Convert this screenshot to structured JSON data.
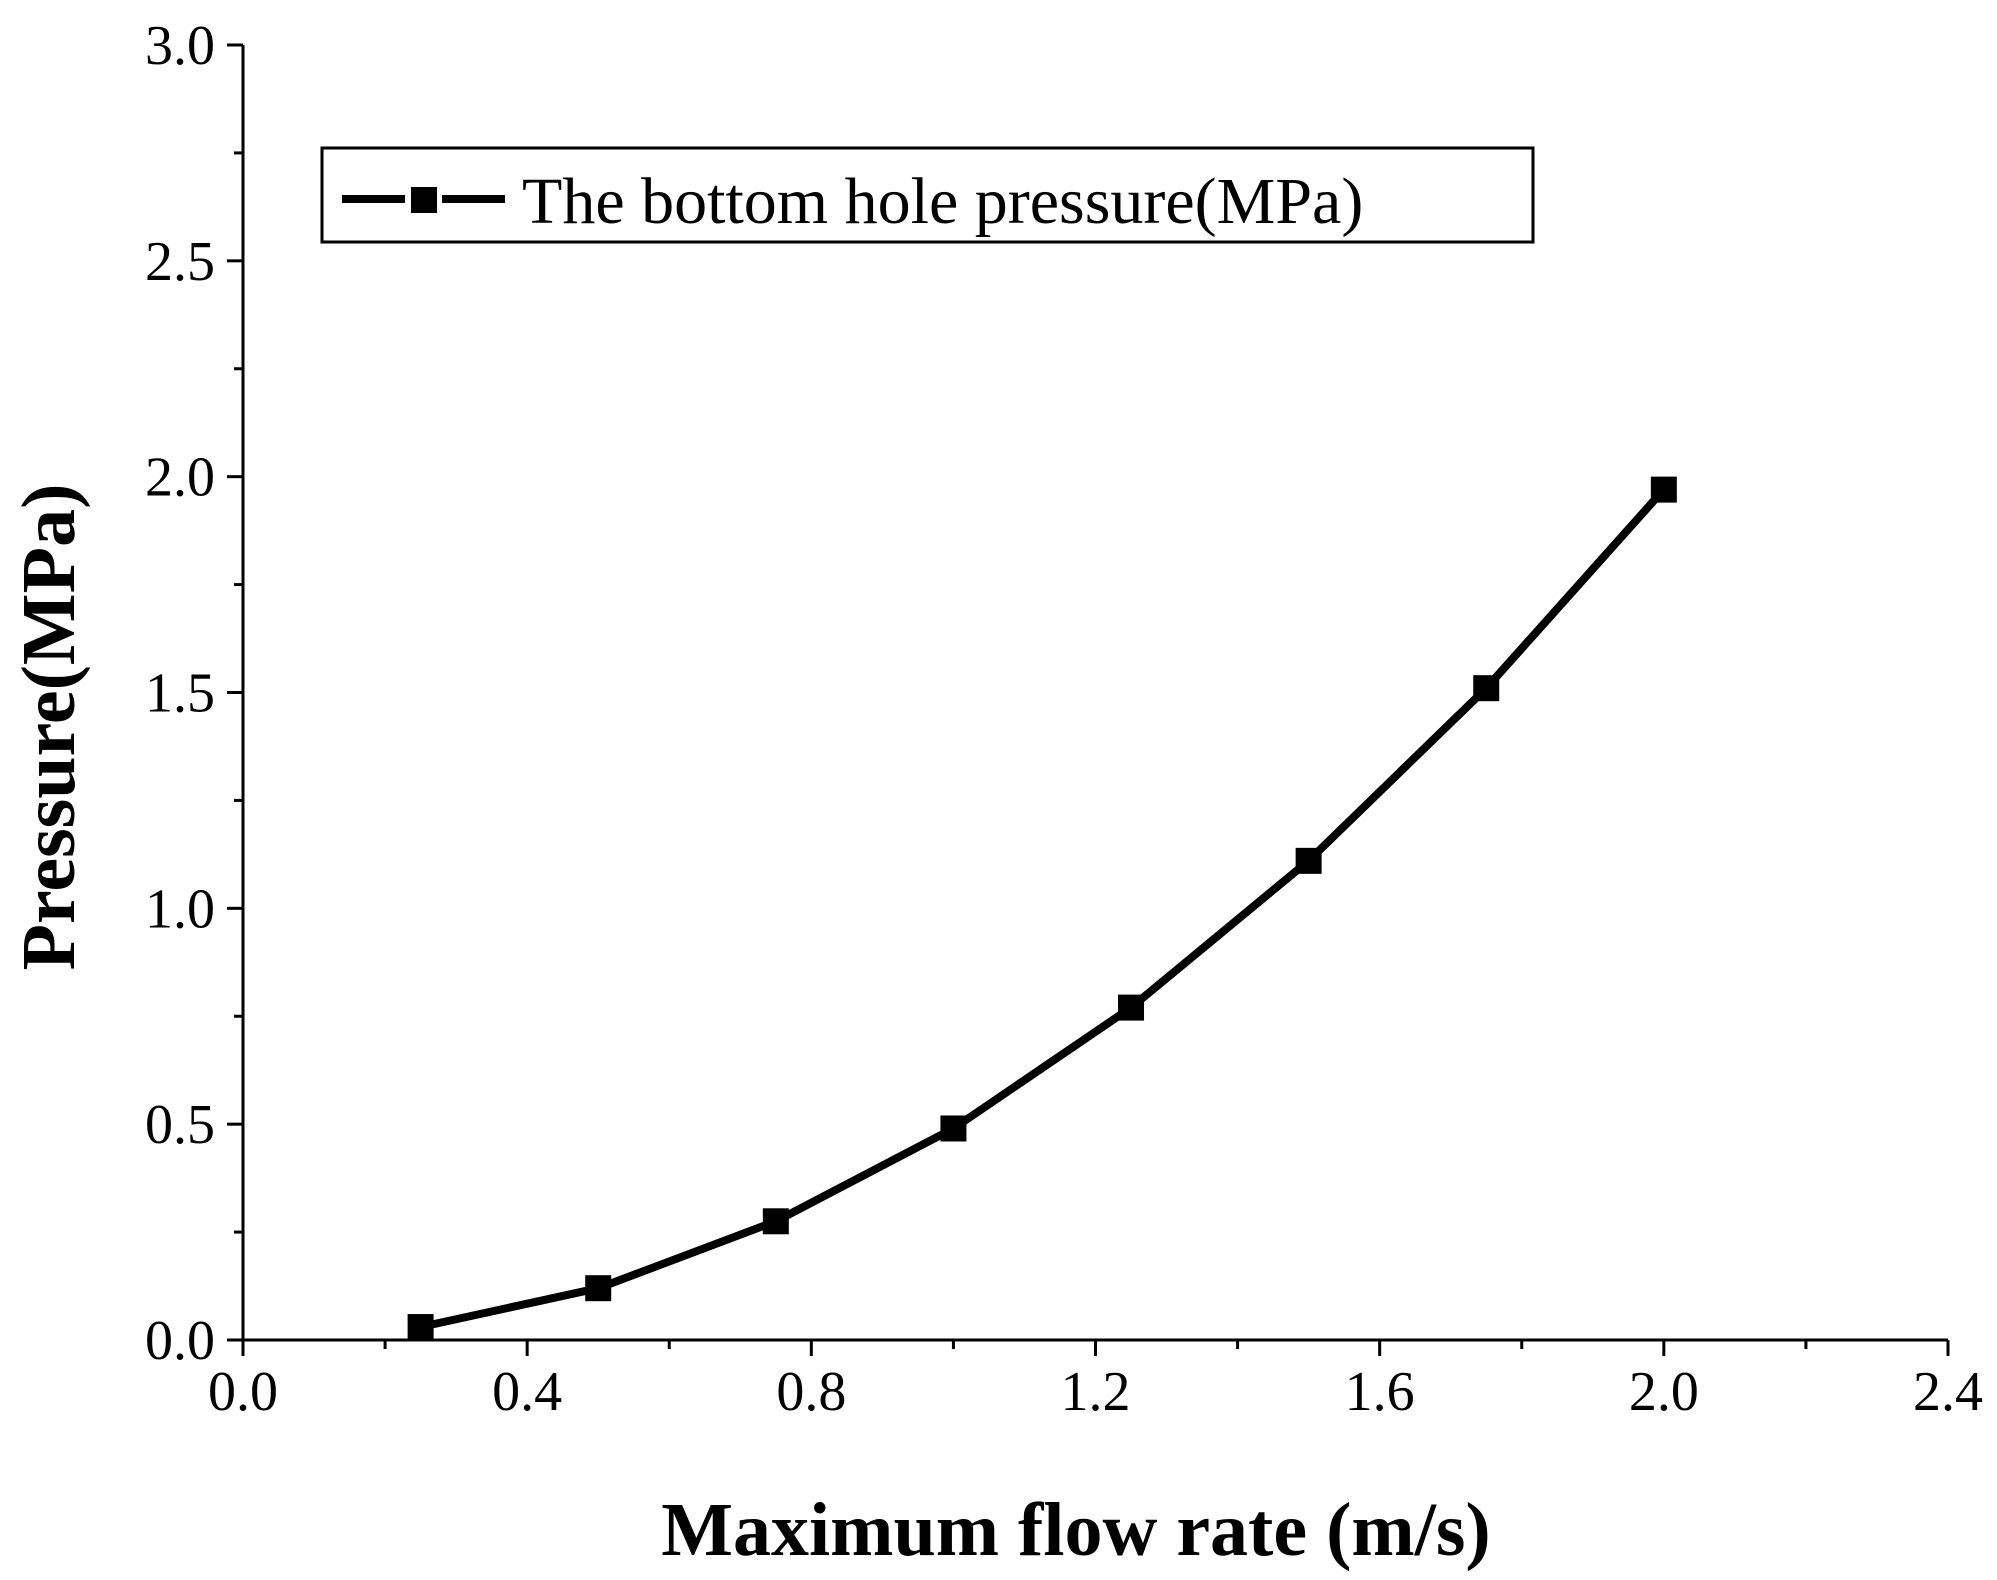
{
  "chart_data": {
    "type": "line",
    "title": "",
    "xlabel": "Maximum flow rate (m/s)",
    "ylabel": "Pressure(MPa)",
    "xlim": [
      0.0,
      2.4
    ],
    "ylim": [
      0.0,
      3.0
    ],
    "xticks": [
      0.0,
      0.4,
      0.8,
      1.2,
      1.6,
      2.0,
      2.4
    ],
    "xtick_labels": [
      "0.0",
      "0.4",
      "0.8",
      "1.2",
      "1.6",
      "2.0",
      "2.4"
    ],
    "yticks": [
      0.0,
      0.5,
      1.0,
      1.5,
      2.0,
      2.5,
      3.0
    ],
    "ytick_labels": [
      "0.0",
      "0.5",
      "1.0",
      "1.5",
      "2.0",
      "2.5",
      "3.0"
    ],
    "grid": false,
    "legend_position": "top-left",
    "series": [
      {
        "name": "The bottom hole pressure(MPa)",
        "color": "#000000",
        "marker": "square",
        "x": [
          0.25,
          0.5,
          0.75,
          1.0,
          1.25,
          1.5,
          1.75,
          2.0
        ],
        "y": [
          0.03,
          0.12,
          0.275,
          0.49,
          0.77,
          1.11,
          1.51,
          1.97
        ]
      }
    ]
  }
}
